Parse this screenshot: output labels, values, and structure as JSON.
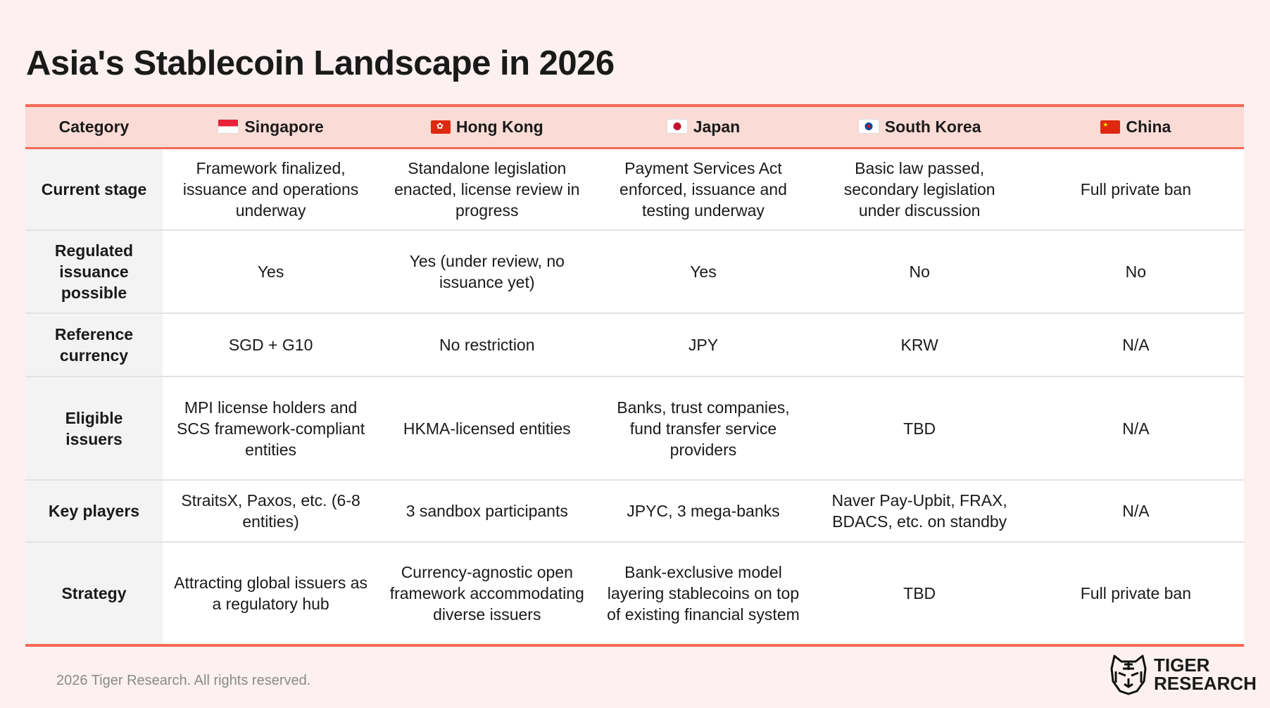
{
  "title": "Asia's Stablecoin Landscape in 2026",
  "table": {
    "headers": [
      {
        "label": "Category",
        "flag": ""
      },
      {
        "label": "Singapore",
        "flag": "singapore-flag"
      },
      {
        "label": "Hong Kong",
        "flag": "hong-kong-flag"
      },
      {
        "label": "Japan",
        "flag": "japan-flag"
      },
      {
        "label": "South Korea",
        "flag": "south-korea-flag"
      },
      {
        "label": "China",
        "flag": "china-flag"
      }
    ],
    "rows": [
      {
        "category": "Current stage",
        "cells": [
          "Framework finalized, issuance and operations underway",
          "Standalone legislation enacted, license review in progress",
          "Payment Services Act enforced, issuance and testing underway",
          "Basic law passed, secondary legislation under discussion",
          "Full private ban"
        ]
      },
      {
        "category": "Regulated issuance possible",
        "cells": [
          "Yes",
          "Yes (under review, no issuance yet)",
          "Yes",
          "No",
          "No"
        ]
      },
      {
        "category": "Reference currency",
        "cells": [
          "SGD + G10",
          "No restriction",
          "JPY",
          "KRW",
          "N/A"
        ]
      },
      {
        "category": "Eligible issuers",
        "cells": [
          "MPI license holders and SCS framework-compliant entities",
          "HKMA-licensed entities",
          "Banks, trust companies, fund transfer service providers",
          "TBD",
          "N/A"
        ]
      },
      {
        "category": "Key players",
        "cells": [
          "StraitsX, Paxos, etc. (6-8 entities)",
          "3 sandbox participants",
          "JPYC, 3 mega-banks",
          "Naver Pay-Upbit, FRAX, BDACS, etc. on standby",
          "N/A"
        ]
      },
      {
        "category": "Strategy",
        "cells": [
          "Attracting global issuers as a regulatory hub",
          "Currency-agnostic open framework accommodating diverse issuers",
          "Bank-exclusive model layering stablecoins on top of existing financial system",
          "TBD",
          "Full private ban"
        ]
      }
    ]
  },
  "footer": "2026 Tiger Research. All rights reserved.",
  "logo": {
    "line1": "TIGER",
    "line2": "RESEARCH"
  },
  "colors": {
    "accent": "#f46a55",
    "header_bg": "#fadbd5",
    "page_bg": "#fdf0f0"
  }
}
